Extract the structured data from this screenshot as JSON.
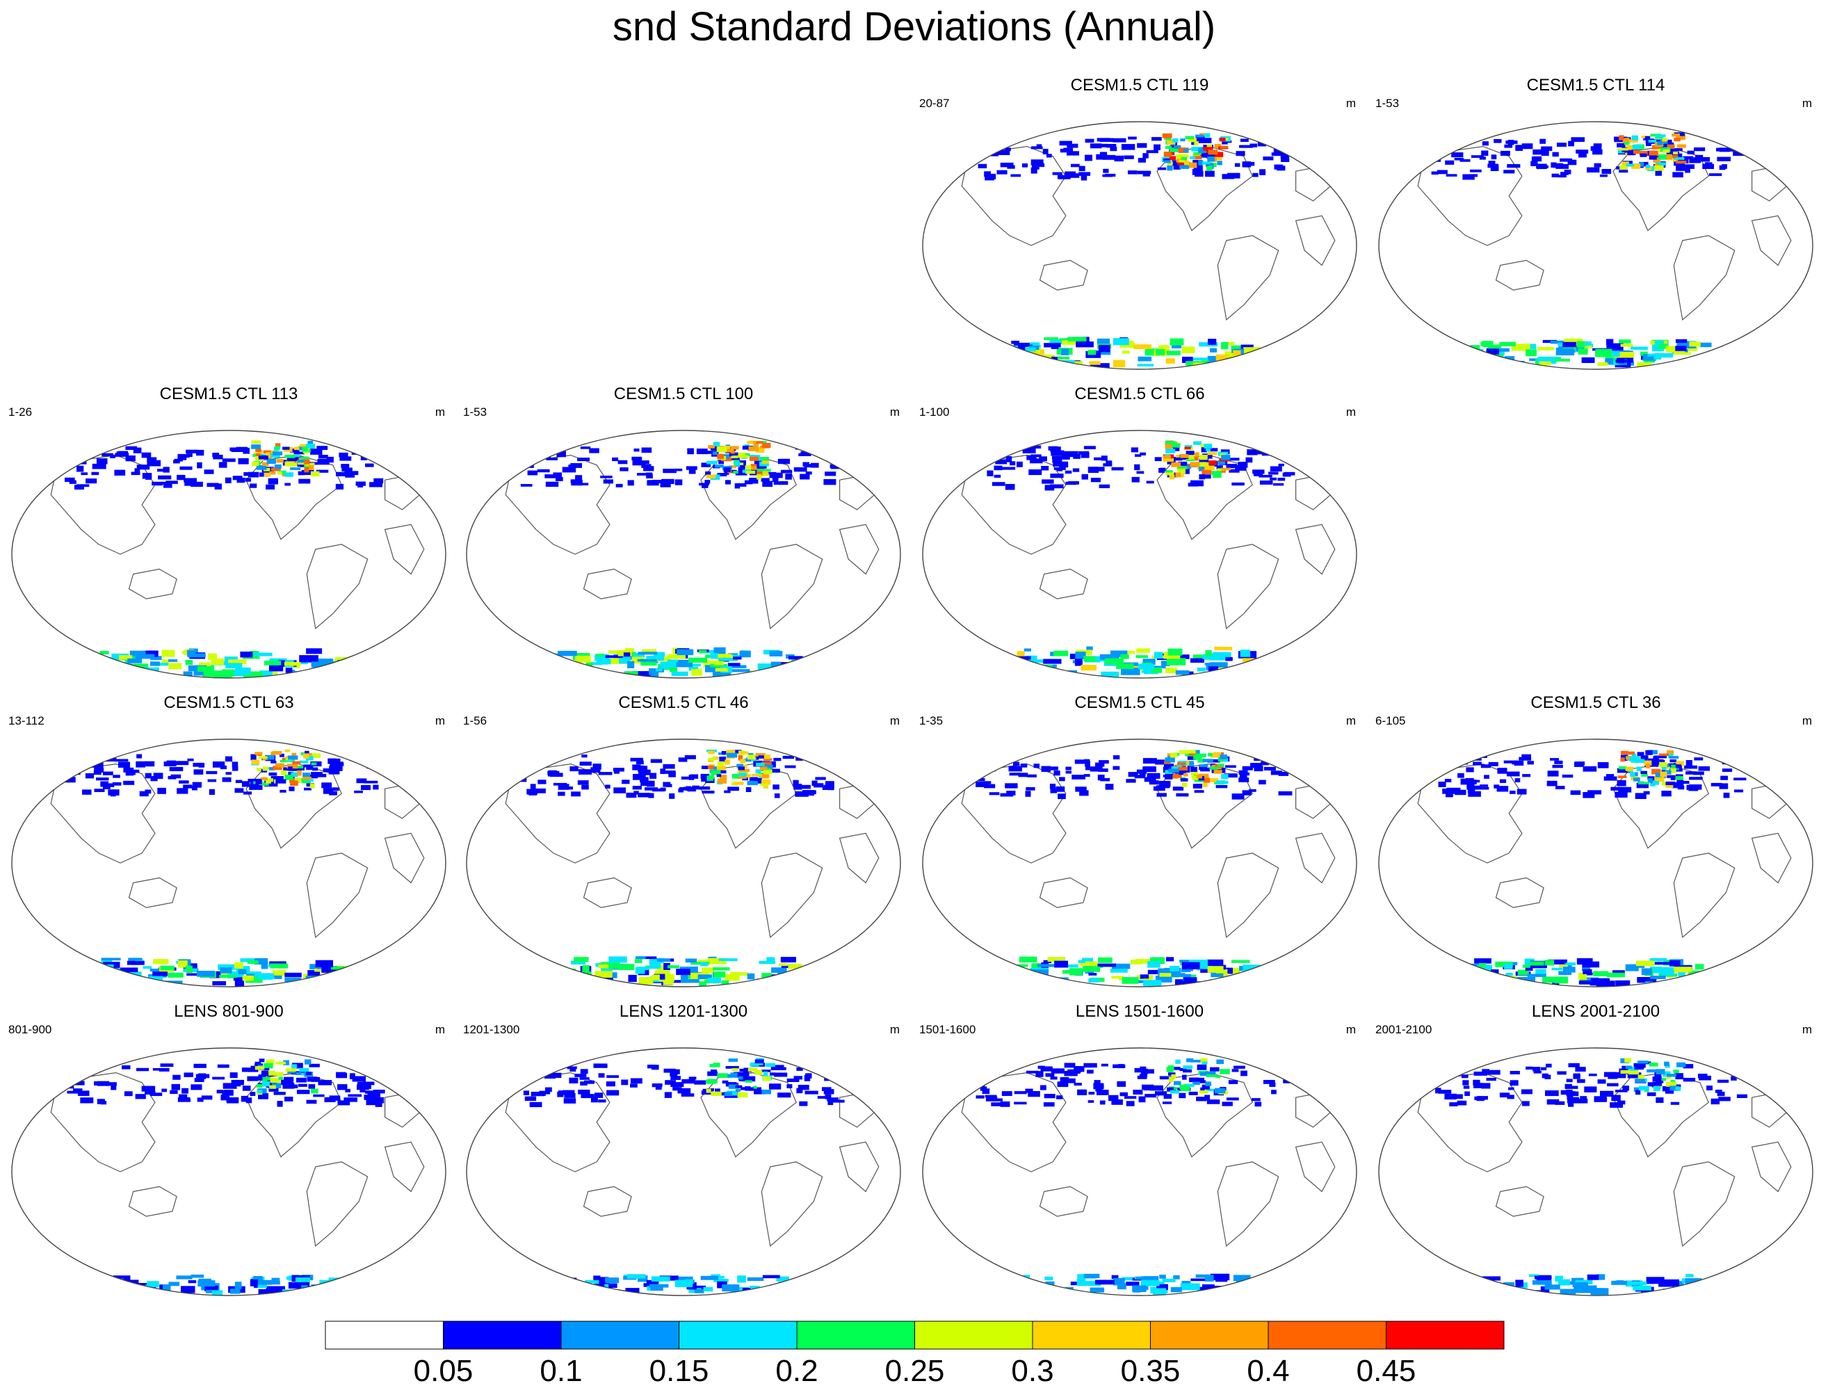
{
  "figure": {
    "title": "snd Standard Deviations (Annual)"
  },
  "panels": [
    {
      "title": "CESM1.5 CTL 119",
      "range": "20-87",
      "units": "m",
      "row": 0,
      "col": 2,
      "intensity": 0.9
    },
    {
      "title": "CESM1.5 CTL 114",
      "range": "1-53",
      "units": "m",
      "row": 0,
      "col": 3,
      "intensity": 0.8
    },
    {
      "title": "CESM1.5 CTL 113",
      "range": "1-26",
      "units": "m",
      "row": 1,
      "col": 0,
      "intensity": 0.75
    },
    {
      "title": "CESM1.5 CTL 100",
      "range": "1-53",
      "units": "m",
      "row": 1,
      "col": 1,
      "intensity": 0.8
    },
    {
      "title": "CESM1.5 CTL 66",
      "range": "1-100",
      "units": "m",
      "row": 1,
      "col": 2,
      "intensity": 0.85
    },
    {
      "title": "CESM1.5 CTL 63",
      "range": "13-112",
      "units": "m",
      "row": 2,
      "col": 0,
      "intensity": 0.75
    },
    {
      "title": "CESM1.5 CTL 46",
      "range": "1-56",
      "units": "m",
      "row": 2,
      "col": 1,
      "intensity": 0.8
    },
    {
      "title": "CESM1.5 CTL 45",
      "range": "1-35",
      "units": "m",
      "row": 2,
      "col": 2,
      "intensity": 0.8
    },
    {
      "title": "CESM1.5 CTL 36",
      "range": "6-105",
      "units": "m",
      "row": 2,
      "col": 3,
      "intensity": 0.7
    },
    {
      "title": "LENS 801-900",
      "range": "801-900",
      "units": "m",
      "row": 3,
      "col": 0,
      "intensity": 0.35
    },
    {
      "title": "LENS 1201-1300",
      "range": "1201-1300",
      "units": "m",
      "row": 3,
      "col": 1,
      "intensity": 0.35
    },
    {
      "title": "LENS 1501-1600",
      "range": "1501-1600",
      "units": "m",
      "row": 3,
      "col": 2,
      "intensity": 0.35
    },
    {
      "title": "LENS 2001-2100",
      "range": "2001-2100",
      "units": "m",
      "row": 3,
      "col": 3,
      "intensity": 0.35
    }
  ],
  "colorbar": {
    "colors": [
      "#ffffff",
      "#0000ff",
      "#0096ff",
      "#00e6ff",
      "#00ff50",
      "#d2ff00",
      "#ffd200",
      "#ffa000",
      "#ff6400",
      "#ff0000"
    ],
    "tick_labels": [
      "0.05",
      "0.1",
      "0.15",
      "0.2",
      "0.25",
      "0.3",
      "0.35",
      "0.4",
      "0.45"
    ]
  }
}
